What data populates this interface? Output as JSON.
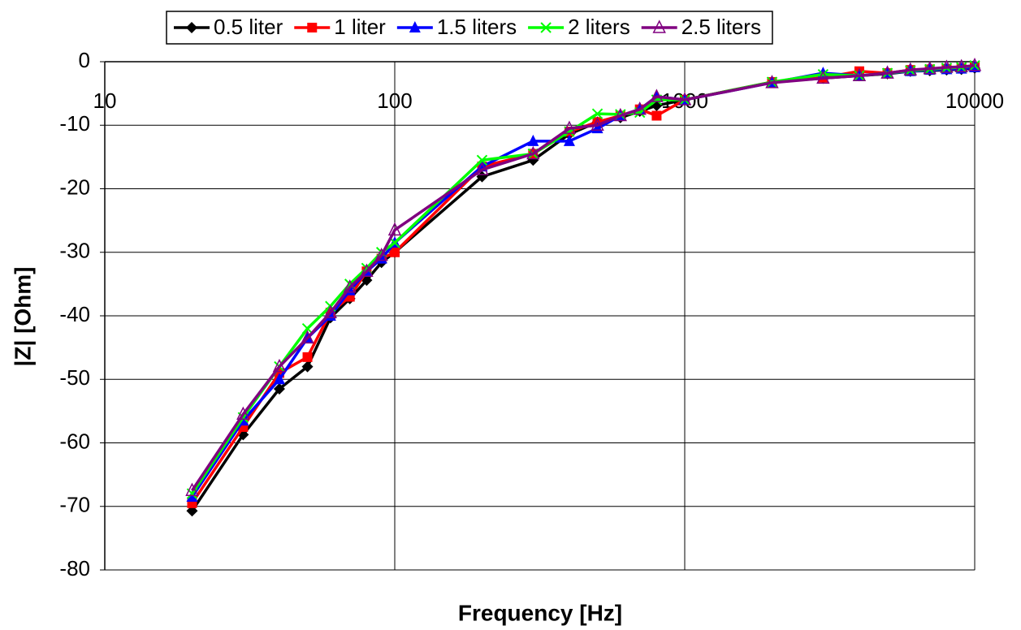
{
  "chart_data": {
    "type": "line",
    "xlabel": "Frequency [Hz]",
    "ylabel": "|Z| [Ohm]",
    "xscale": "log",
    "grid": true,
    "legend": "top",
    "x": [
      20,
      30,
      40,
      50,
      60,
      70,
      80,
      90,
      100,
      200,
      300,
      400,
      500,
      600,
      700,
      800,
      1000,
      2000,
      3000,
      4000,
      5000,
      6000,
      7000,
      8000,
      9000,
      10000
    ],
    "xlim": [
      10,
      10000
    ],
    "xticks": [
      10,
      100,
      1000,
      10000
    ],
    "ylim": [
      -80,
      0
    ],
    "yticks": [
      0,
      -10,
      -20,
      -30,
      -40,
      -50,
      -60,
      -70,
      -80
    ],
    "series": [
      {
        "name": "0.5 liter",
        "color": "#000000",
        "marker": "diamond",
        "values": [
          -70.7,
          -58.7,
          -51.5,
          -48,
          -40.3,
          -37.3,
          -34.4,
          -31.6,
          -30,
          -18.1,
          -15.5,
          -11.4,
          -9.5,
          -8.8,
          -7.8,
          -6.9,
          -6,
          -3.2,
          -2.6,
          -2.2,
          -1.9,
          -1.5,
          -1.4,
          -1.3,
          -1.2,
          -1
        ]
      },
      {
        "name": "1 liter",
        "color": "#ff0000",
        "marker": "square",
        "values": [
          -69.5,
          -57.5,
          -49,
          -46.5,
          -39.5,
          -37,
          -33,
          -31,
          -30,
          -16.5,
          -14.5,
          -11,
          -9.5,
          -8.5,
          -7.5,
          -8.5,
          -6,
          -3.2,
          -2.5,
          -1.5,
          -1.8,
          -1.3,
          -1.2,
          -1.1,
          -1,
          -0.8
        ]
      },
      {
        "name": "1.5 liters",
        "color": "#0000ff",
        "marker": "triangle",
        "values": [
          -68.5,
          -56.5,
          -50,
          -43.5,
          -40,
          -36,
          -33,
          -31,
          -28.5,
          -16.5,
          -12.5,
          -12.5,
          -10.5,
          -8.5,
          -7.5,
          -5.5,
          -6,
          -3.3,
          -1.8,
          -2.2,
          -1.8,
          -1.5,
          -1.3,
          -1.2,
          -1.1,
          -0.9
        ]
      },
      {
        "name": "2 liters",
        "color": "#00ff00",
        "marker": "x",
        "values": [
          -68,
          -56,
          -48,
          -42,
          -38.5,
          -35,
          -32.5,
          -30,
          -28.5,
          -15.5,
          -14.5,
          -11,
          -8.2,
          -8.3,
          -8,
          -6,
          -6,
          -3.2,
          -2,
          -2.2,
          -1.8,
          -1.4,
          -1.2,
          -1,
          -0.9,
          -0.6
        ]
      },
      {
        "name": "2.5 liters",
        "color": "#800080",
        "marker": "open-triangle",
        "values": [
          -67.5,
          -55.5,
          -48,
          -43.5,
          -39.5,
          -35.5,
          -33,
          -30.5,
          -26.5,
          -17,
          -14.5,
          -10.5,
          -10,
          -8.5,
          -7.5,
          -5.5,
          -6,
          -3.3,
          -2.6,
          -2.2,
          -1.8,
          -1.3,
          -1.1,
          -0.9,
          -0.8,
          -0.6
        ]
      }
    ]
  }
}
